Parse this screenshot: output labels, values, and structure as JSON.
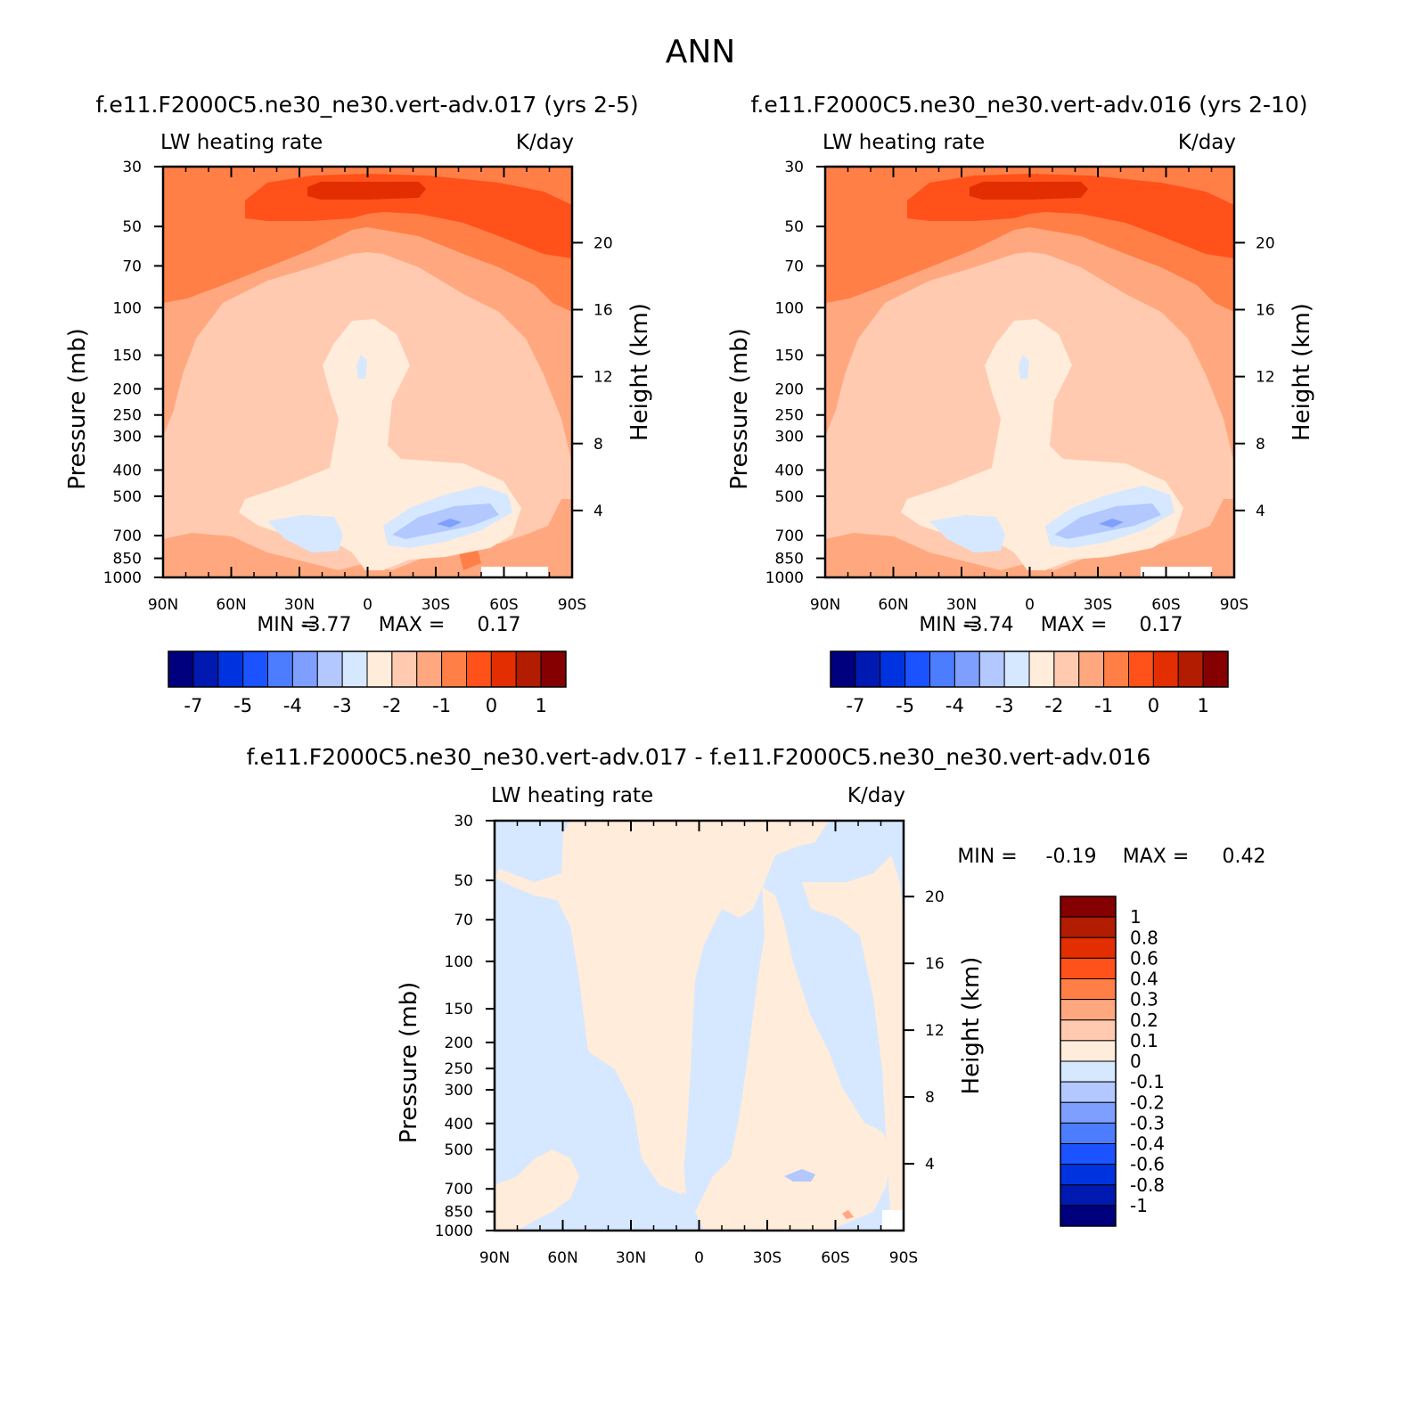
{
  "figure_title": "ANN",
  "chart_data": [
    {
      "type": "heatmap",
      "title": "f.e11.F2000C5.ne30_ne30.vert-adv.017 (yrs 2-5)",
      "left_label": "LW heating rate",
      "right_label": "K/day",
      "ylabel": "Pressure (mb)",
      "ylabel_right": "Height (km)",
      "x_ticks": [
        "90N",
        "60N",
        "30N",
        "0",
        "30S",
        "60S",
        "90S"
      ],
      "y_ticks": [
        "30",
        "50",
        "70",
        "100",
        "150",
        "200",
        "250",
        "300",
        "400",
        "500",
        "700",
        "850",
        "1000"
      ],
      "y_ticks_right": [
        "20",
        "16",
        "12",
        "8",
        "4"
      ],
      "ylim": [
        1000,
        30
      ],
      "y_scale": "log",
      "stats": {
        "min_label": "MIN =",
        "min": "-3.77",
        "max_label": "MAX =",
        "max": "0.17"
      },
      "colorbar": {
        "orientation": "horizontal",
        "colors": [
          "#00007F",
          "#0019B0",
          "#0033E0",
          "#1A53FF",
          "#4C7DFF",
          "#7F9FFF",
          "#B2C8FF",
          "#D6E8FF",
          "#FFECDA",
          "#FFCAB0",
          "#FFA87F",
          "#FF7F47",
          "#FF5119",
          "#E22E00",
          "#B21C00",
          "#850000"
        ],
        "labels": [
          "-7",
          "-5",
          "-4",
          "-3",
          "-2",
          "-1",
          "0",
          "1"
        ]
      }
    },
    {
      "type": "heatmap",
      "title": "f.e11.F2000C5.ne30_ne30.vert-adv.016 (yrs 2-10)",
      "left_label": "LW heating rate",
      "right_label": "K/day",
      "ylabel": "Pressure (mb)",
      "ylabel_right": "Height (km)",
      "x_ticks": [
        "90N",
        "60N",
        "30N",
        "0",
        "30S",
        "60S",
        "90S"
      ],
      "y_ticks": [
        "30",
        "50",
        "70",
        "100",
        "150",
        "200",
        "250",
        "300",
        "400",
        "500",
        "700",
        "850",
        "1000"
      ],
      "y_ticks_right": [
        "20",
        "16",
        "12",
        "8",
        "4"
      ],
      "ylim": [
        1000,
        30
      ],
      "y_scale": "log",
      "stats": {
        "min_label": "MIN =",
        "min": "-3.74",
        "max_label": "MAX =",
        "max": "0.17"
      },
      "colorbar": {
        "orientation": "horizontal",
        "colors": [
          "#00007F",
          "#0019B0",
          "#0033E0",
          "#1A53FF",
          "#4C7DFF",
          "#7F9FFF",
          "#B2C8FF",
          "#D6E8FF",
          "#FFECDA",
          "#FFCAB0",
          "#FFA87F",
          "#FF7F47",
          "#FF5119",
          "#E22E00",
          "#B21C00",
          "#850000"
        ],
        "labels": [
          "-7",
          "-5",
          "-4",
          "-3",
          "-2",
          "-1",
          "0",
          "1"
        ]
      }
    },
    {
      "type": "heatmap",
      "title": "f.e11.F2000C5.ne30_ne30.vert-adv.017 - f.e11.F2000C5.ne30_ne30.vert-adv.016",
      "left_label": "LW heating rate",
      "right_label": "K/day",
      "ylabel": "Pressure (mb)",
      "ylabel_right": "Height (km)",
      "x_ticks": [
        "90N",
        "60N",
        "30N",
        "0",
        "30S",
        "60S",
        "90S"
      ],
      "y_ticks": [
        "30",
        "50",
        "70",
        "100",
        "150",
        "200",
        "250",
        "300",
        "400",
        "500",
        "700",
        "850",
        "1000"
      ],
      "y_ticks_right": [
        "20",
        "16",
        "12",
        "8",
        "4"
      ],
      "ylim": [
        1000,
        30
      ],
      "y_scale": "log",
      "stats": {
        "min_label": "MIN =",
        "min": "-0.19",
        "max_label": "MAX =",
        "max": "0.42"
      },
      "colorbar": {
        "orientation": "vertical",
        "colors": [
          "#00007F",
          "#0019B0",
          "#0033E0",
          "#1A53FF",
          "#4C7DFF",
          "#7F9FFF",
          "#B2C8FF",
          "#D6E8FF",
          "#FFECDA",
          "#FFCAB0",
          "#FFA87F",
          "#FF7F47",
          "#FF5119",
          "#E22E00",
          "#B21C00",
          "#850000"
        ],
        "labels": [
          "1",
          "0.8",
          "0.6",
          "0.4",
          "0.3",
          "0.2",
          "0.1",
          "0",
          "-0.1",
          "-0.2",
          "-0.3",
          "-0.4",
          "-0.6",
          "-0.8",
          "-1"
        ]
      }
    }
  ]
}
